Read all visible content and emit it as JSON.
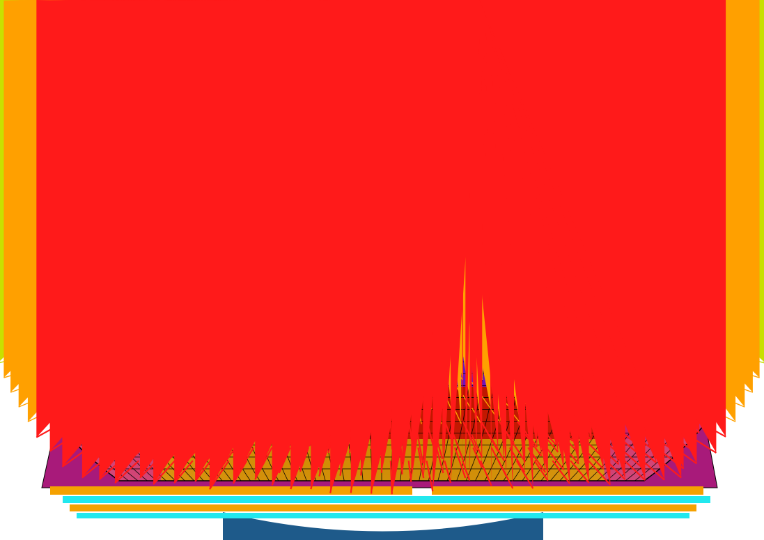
{
  "view": {
    "background": "#ffffff",
    "description_visible_text": ""
  },
  "colors": {
    "mesh_line": "#000000",
    "bands": [
      "#0b3a8a",
      "#1a7f8a",
      "#6e1ab5",
      "#7d16c9",
      "#cc1800",
      "#d79000",
      "#a91a7c"
    ],
    "arrows": {
      "top": "#1e5cff",
      "upper": "#2ad0d6",
      "middle": "#44ff22",
      "lower_mid": "#c8e000",
      "lower": "#ffa000",
      "bottom": "#ff1a1a"
    },
    "base_strips": [
      "#f5a100",
      "#22e8ee"
    ]
  }
}
